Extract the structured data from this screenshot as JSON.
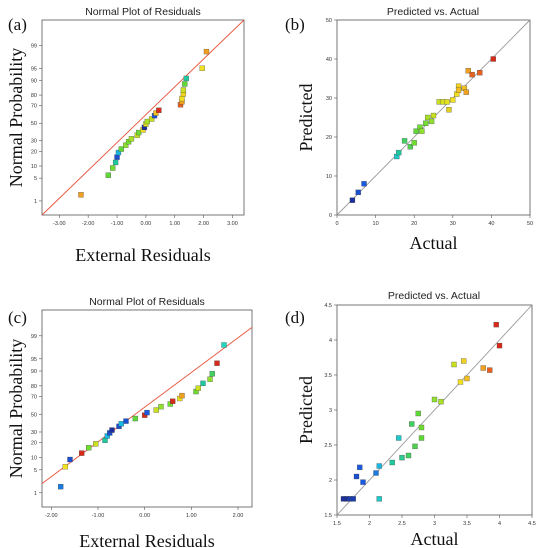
{
  "chart_data": [
    {
      "panel": "(a)",
      "type": "scatter",
      "title": "Normal Plot of Residuals",
      "xlabel": "External Residuals",
      "ylabel": "Normal Probability",
      "xlim": [
        -3.6,
        3.4
      ],
      "x_ticks": [
        "-3.00",
        "-2.00",
        "-1.00",
        "0.00",
        "1.00",
        "2.00",
        "3.00"
      ],
      "x_tick_values": [
        -3,
        -2,
        -1,
        0,
        1,
        2,
        3
      ],
      "y_ticks": [
        "1",
        "5",
        "10",
        "20",
        "30",
        "50",
        "70",
        "80",
        "90",
        "95",
        "99"
      ],
      "y_tick_values": [
        1,
        5,
        10,
        20,
        30,
        50,
        70,
        80,
        90,
        95,
        99
      ],
      "ref_line": {
        "x": [
          -3.6,
          3.4
        ],
        "p": [
          0.3,
          99.9
        ],
        "color": "#e8533b"
      },
      "points": [
        {
          "x": -2.25,
          "p": 1.6,
          "c": "#f0a020"
        },
        {
          "x": -1.3,
          "p": 6.0,
          "c": "#60d838"
        },
        {
          "x": -1.15,
          "p": 9.0,
          "c": "#70dc30"
        },
        {
          "x": -1.05,
          "p": 12.0,
          "c": "#20c8a0"
        },
        {
          "x": -1.0,
          "p": 15.5,
          "c": "#1a4fd0"
        },
        {
          "x": -0.95,
          "p": 19.0,
          "c": "#1ab8e0"
        },
        {
          "x": -0.85,
          "p": 22.0,
          "c": "#60d838"
        },
        {
          "x": -0.7,
          "p": 25.5,
          "c": "#90e030"
        },
        {
          "x": -0.6,
          "p": 29.0,
          "c": "#70dc30"
        },
        {
          "x": -0.5,
          "p": 32.0,
          "c": "#a8e028"
        },
        {
          "x": -0.3,
          "p": 36.0,
          "c": "#c8e020"
        },
        {
          "x": -0.25,
          "p": 39.0,
          "c": "#70dc30"
        },
        {
          "x": -0.1,
          "p": 42.0,
          "c": "#f0e020"
        },
        {
          "x": -0.05,
          "p": 45.0,
          "c": "#1a2e9c"
        },
        {
          "x": 0.0,
          "p": 49.0,
          "c": "#e0e020"
        },
        {
          "x": 0.05,
          "p": 52.0,
          "c": "#a8e028"
        },
        {
          "x": 0.2,
          "p": 55.0,
          "c": "#c8e020"
        },
        {
          "x": 0.3,
          "p": 59.0,
          "c": "#1a4fd0"
        },
        {
          "x": 0.35,
          "p": 62.0,
          "c": "#f0c020"
        },
        {
          "x": 0.45,
          "p": 65.0,
          "c": "#d82a1a"
        },
        {
          "x": 1.2,
          "p": 71.0,
          "c": "#e86020"
        },
        {
          "x": 1.25,
          "p": 74.0,
          "c": "#f0a020"
        },
        {
          "x": 1.25,
          "p": 77.0,
          "c": "#f0e020"
        },
        {
          "x": 1.3,
          "p": 81.0,
          "c": "#f0d020"
        },
        {
          "x": 1.3,
          "p": 84.0,
          "c": "#c8e020"
        },
        {
          "x": 1.35,
          "p": 88.0,
          "c": "#60d838"
        },
        {
          "x": 1.4,
          "p": 91.0,
          "c": "#20c8a0"
        },
        {
          "x": 1.95,
          "p": 95.0,
          "c": "#f0e020"
        },
        {
          "x": 2.1,
          "p": 98.4,
          "c": "#f0a020"
        }
      ]
    },
    {
      "panel": "(b)",
      "type": "scatter",
      "title": "Predicted vs. Actual",
      "xlabel": "Actual",
      "ylabel": "Predicted",
      "xlim": [
        0,
        50
      ],
      "ylim": [
        0,
        50
      ],
      "x_ticks": [
        "0",
        "10",
        "20",
        "30",
        "40",
        "50"
      ],
      "y_ticks": [
        "0",
        "10",
        "20",
        "30",
        "40",
        "50"
      ],
      "tick_values": [
        0,
        10,
        20,
        30,
        40,
        50
      ],
      "ref_line": {
        "x": [
          0,
          50
        ],
        "y": [
          0,
          50
        ],
        "color": "#999999"
      },
      "points": [
        {
          "x": 4.0,
          "y": 3.8,
          "c": "#1a2e9c"
        },
        {
          "x": 5.5,
          "y": 5.8,
          "c": "#1a4fd0"
        },
        {
          "x": 7.0,
          "y": 8.0,
          "c": "#1a5ae0"
        },
        {
          "x": 15.5,
          "y": 15.0,
          "c": "#20c8c8"
        },
        {
          "x": 16.0,
          "y": 16.0,
          "c": "#20c8a0"
        },
        {
          "x": 17.5,
          "y": 19.0,
          "c": "#40d060"
        },
        {
          "x": 19.0,
          "y": 17.5,
          "c": "#50d050"
        },
        {
          "x": 20.0,
          "y": 18.5,
          "c": "#70dc30"
        },
        {
          "x": 20.5,
          "y": 21.5,
          "c": "#60d838"
        },
        {
          "x": 21.5,
          "y": 22.5,
          "c": "#70dc30"
        },
        {
          "x": 22.0,
          "y": 21.5,
          "c": "#90e030"
        },
        {
          "x": 23.0,
          "y": 23.5,
          "c": "#70dc30"
        },
        {
          "x": 23.5,
          "y": 25.0,
          "c": "#a8e028"
        },
        {
          "x": 24.5,
          "y": 24.0,
          "c": "#90e030"
        },
        {
          "x": 25.0,
          "y": 25.5,
          "c": "#c8e020"
        },
        {
          "x": 26.5,
          "y": 29.0,
          "c": "#c8e020"
        },
        {
          "x": 27.5,
          "y": 29.0,
          "c": "#d8e020"
        },
        {
          "x": 28.5,
          "y": 29.0,
          "c": "#e0e020"
        },
        {
          "x": 29.0,
          "y": 27.0,
          "c": "#e0d020"
        },
        {
          "x": 30.0,
          "y": 29.5,
          "c": "#f0e020"
        },
        {
          "x": 31.0,
          "y": 31.0,
          "c": "#f0e020"
        },
        {
          "x": 31.5,
          "y": 33.0,
          "c": "#f0d020"
        },
        {
          "x": 31.5,
          "y": 32.0,
          "c": "#f0c020"
        },
        {
          "x": 33.0,
          "y": 32.5,
          "c": "#f0c020"
        },
        {
          "x": 33.5,
          "y": 31.5,
          "c": "#f0a020"
        },
        {
          "x": 34.0,
          "y": 37.0,
          "c": "#f0a020"
        },
        {
          "x": 35.0,
          "y": 36.0,
          "c": "#e86020"
        },
        {
          "x": 37.0,
          "y": 36.5,
          "c": "#e86020"
        },
        {
          "x": 40.5,
          "y": 40.0,
          "c": "#d82a1a"
        }
      ]
    },
    {
      "panel": "(c)",
      "type": "scatter",
      "title": "Normal Plot of Residuals",
      "xlabel": "External Residuals",
      "ylabel": "Normal Probability",
      "xlim": [
        -2.2,
        2.3
      ],
      "x_ticks": [
        "-2.00",
        "-1.00",
        "0.00",
        "1.00",
        "2.00"
      ],
      "x_tick_values": [
        -2,
        -1,
        0,
        1,
        2
      ],
      "y_ticks": [
        "1",
        "5",
        "10",
        "20",
        "30",
        "50",
        "70",
        "80",
        "90",
        "95",
        "99"
      ],
      "y_tick_values": [
        1,
        5,
        10,
        20,
        30,
        50,
        70,
        80,
        90,
        95,
        99
      ],
      "ref_line": {
        "x": [
          -2.2,
          2.3
        ],
        "p": [
          2.0,
          99.5
        ],
        "color": "#e8533b"
      },
      "points": [
        {
          "x": -1.8,
          "p": 1.6,
          "c": "#1a7ae0"
        },
        {
          "x": -1.7,
          "p": 6.0,
          "c": "#f0e020"
        },
        {
          "x": -1.6,
          "p": 9.0,
          "c": "#1a4fd0"
        },
        {
          "x": -1.35,
          "p": 12.5,
          "c": "#d82a1a"
        },
        {
          "x": -1.2,
          "p": 16.0,
          "c": "#70dc30"
        },
        {
          "x": -1.05,
          "p": 19.0,
          "c": "#c8e020"
        },
        {
          "x": -0.85,
          "p": 22.0,
          "c": "#20c8a0"
        },
        {
          "x": -0.8,
          "p": 26.0,
          "c": "#1ab8e0"
        },
        {
          "x": -0.75,
          "p": 29.0,
          "c": "#1a4fd0"
        },
        {
          "x": -0.7,
          "p": 32.0,
          "c": "#1a2e9c"
        },
        {
          "x": -0.55,
          "p": 36.0,
          "c": "#1a4fd0"
        },
        {
          "x": -0.5,
          "p": 39.0,
          "c": "#1ab8e0"
        },
        {
          "x": -0.4,
          "p": 42.0,
          "c": "#1a4fd0"
        },
        {
          "x": -0.2,
          "p": 45.0,
          "c": "#60d838"
        },
        {
          "x": 0.0,
          "p": 49.0,
          "c": "#d82a1a"
        },
        {
          "x": 0.05,
          "p": 52.0,
          "c": "#1a5ae0"
        },
        {
          "x": 0.25,
          "p": 55.0,
          "c": "#c8e020"
        },
        {
          "x": 0.35,
          "p": 59.0,
          "c": "#90e030"
        },
        {
          "x": 0.55,
          "p": 62.0,
          "c": "#70dc30"
        },
        {
          "x": 0.6,
          "p": 65.0,
          "c": "#d82a1a"
        },
        {
          "x": 0.75,
          "p": 68.0,
          "c": "#f0e020"
        },
        {
          "x": 0.8,
          "p": 71.0,
          "c": "#f0a020"
        },
        {
          "x": 1.1,
          "p": 75.0,
          "c": "#70dc30"
        },
        {
          "x": 1.15,
          "p": 78.0,
          "c": "#c8e020"
        },
        {
          "x": 1.25,
          "p": 82.0,
          "c": "#20c8a0"
        },
        {
          "x": 1.4,
          "p": 85.0,
          "c": "#90e030"
        },
        {
          "x": 1.45,
          "p": 88.5,
          "c": "#40d060"
        },
        {
          "x": 1.55,
          "p": 93.5,
          "c": "#d82a1a"
        },
        {
          "x": 1.7,
          "p": 98.0,
          "c": "#20d8c0"
        }
      ]
    },
    {
      "panel": "(d)",
      "type": "scatter",
      "title": "Predicted vs. Actual",
      "xlabel": "Actual",
      "ylabel": "Predicted",
      "xlim": [
        1.5,
        4.5
      ],
      "ylim": [
        1.5,
        4.5
      ],
      "x_ticks": [
        "1.5",
        "2",
        "2.5",
        "3",
        "3.5",
        "4",
        "4.5"
      ],
      "y_ticks": [
        "1.5",
        "2",
        "2.5",
        "3",
        "3.5",
        "4",
        "4.5"
      ],
      "tick_values": [
        1.5,
        2,
        2.5,
        3,
        3.5,
        4,
        4.5
      ],
      "ref_line": {
        "x": [
          1.5,
          4.5
        ],
        "y": [
          1.5,
          4.5
        ],
        "color": "#999999"
      },
      "points": [
        {
          "x": 1.6,
          "y": 1.73,
          "c": "#1a2e9c"
        },
        {
          "x": 1.65,
          "y": 1.73,
          "c": "#1a2e9c"
        },
        {
          "x": 1.7,
          "y": 1.73,
          "c": "#1a3eb0"
        },
        {
          "x": 1.75,
          "y": 1.73,
          "c": "#1a3eb0"
        },
        {
          "x": 1.8,
          "y": 2.05,
          "c": "#1a4fd0"
        },
        {
          "x": 1.85,
          "y": 2.18,
          "c": "#1a5ae0"
        },
        {
          "x": 1.9,
          "y": 1.97,
          "c": "#1a5ae0"
        },
        {
          "x": 2.1,
          "y": 2.1,
          "c": "#1a7ae0"
        },
        {
          "x": 2.15,
          "y": 2.2,
          "c": "#1ab8e0"
        },
        {
          "x": 2.15,
          "y": 1.73,
          "c": "#20c8c8"
        },
        {
          "x": 2.35,
          "y": 2.25,
          "c": "#20c8a0"
        },
        {
          "x": 2.45,
          "y": 2.6,
          "c": "#20c8c8"
        },
        {
          "x": 2.5,
          "y": 2.32,
          "c": "#30c890"
        },
        {
          "x": 2.6,
          "y": 2.35,
          "c": "#40d060"
        },
        {
          "x": 2.65,
          "y": 2.8,
          "c": "#40d060"
        },
        {
          "x": 2.7,
          "y": 2.48,
          "c": "#50d050"
        },
        {
          "x": 2.75,
          "y": 2.95,
          "c": "#60d838"
        },
        {
          "x": 2.8,
          "y": 2.6,
          "c": "#60d838"
        },
        {
          "x": 2.8,
          "y": 2.75,
          "c": "#70dc30"
        },
        {
          "x": 3.0,
          "y": 3.15,
          "c": "#90e030"
        },
        {
          "x": 3.1,
          "y": 3.12,
          "c": "#a8e028"
        },
        {
          "x": 3.3,
          "y": 3.65,
          "c": "#c8e020"
        },
        {
          "x": 3.4,
          "y": 3.4,
          "c": "#f0e020"
        },
        {
          "x": 3.45,
          "y": 3.7,
          "c": "#f0d020"
        },
        {
          "x": 3.5,
          "y": 3.45,
          "c": "#f0c020"
        },
        {
          "x": 3.75,
          "y": 3.6,
          "c": "#f0a020"
        },
        {
          "x": 3.85,
          "y": 3.57,
          "c": "#e86020"
        },
        {
          "x": 3.95,
          "y": 4.22,
          "c": "#d82a1a"
        },
        {
          "x": 4.0,
          "y": 3.92,
          "c": "#d82a1a"
        }
      ]
    }
  ]
}
